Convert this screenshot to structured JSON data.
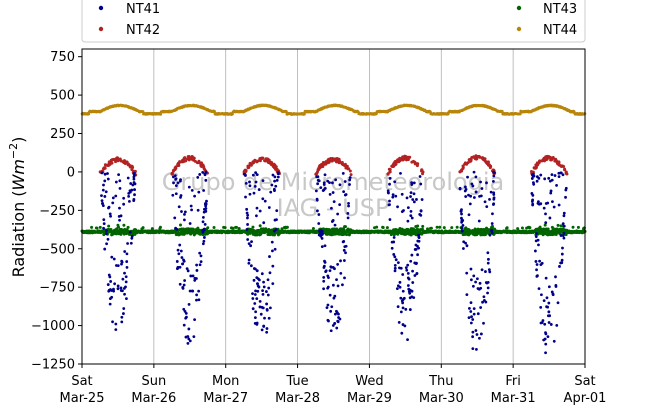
{
  "chart_data": {
    "type": "scatter",
    "title": "",
    "ylabel_prefix": "Radiation (",
    "ylabel_unit": "Wm",
    "ylabel_exp": "−2",
    "ylabel_suffix": ")",
    "ylim": [
      -1250,
      800
    ],
    "yticks": [
      -1250,
      -1000,
      -750,
      -500,
      -250,
      0,
      250,
      500,
      750
    ],
    "ytick_labels": [
      "−1250",
      "−1000",
      "−750",
      "−500",
      "−250",
      "0",
      "250",
      "500",
      "750"
    ],
    "xlim_days": [
      0,
      7
    ],
    "xticks": [
      {
        "day": "Sat",
        "date": "Mar-25"
      },
      {
        "day": "Sun",
        "date": "Mar-26"
      },
      {
        "day": "Mon",
        "date": "Mar-27"
      },
      {
        "day": "Tue",
        "date": "Mar-28"
      },
      {
        "day": "Wed",
        "date": "Mar-29"
      },
      {
        "day": "Thu",
        "date": "Mar-30"
      },
      {
        "day": "Fri",
        "date": "Mar-31"
      },
      {
        "day": "Sat",
        "date": "Apr-01"
      }
    ],
    "grid": "vertical",
    "legend_placement": "top",
    "watermark": [
      "Grupo de Micrometeorologia",
      "IAG - USP"
    ],
    "series": [
      {
        "name": "NT41",
        "color": "#00008b",
        "kind": "incoming-shortwave-neg",
        "daily_min": [
          -1070,
          -1160,
          -1160,
          -1100,
          -1110,
          -1230,
          -1230
        ]
      },
      {
        "name": "NT42",
        "color": "#b22222",
        "kind": "reflected-shortwave",
        "daily_max": [
          100,
          110,
          105,
          100,
          110,
          115,
          110
        ]
      },
      {
        "name": "NT43",
        "color": "#006400",
        "kind": "longwave-net",
        "mean": -390,
        "range": [
          -420,
          -330
        ]
      },
      {
        "name": "NT44",
        "color": "#b8860b",
        "kind": "longwave-emitted",
        "mean": 405,
        "range": [
          380,
          450
        ]
      }
    ]
  }
}
